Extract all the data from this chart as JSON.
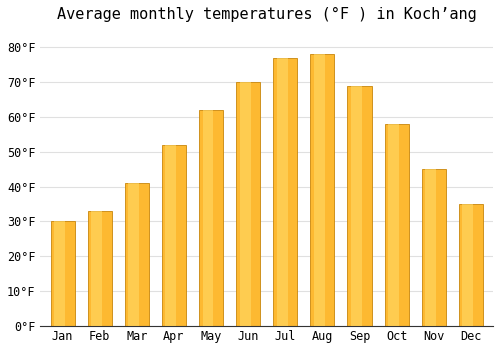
{
  "title": "Average monthly temperatures (°F ) in Koch’ang",
  "months": [
    "Jan",
    "Feb",
    "Mar",
    "Apr",
    "May",
    "Jun",
    "Jul",
    "Aug",
    "Sep",
    "Oct",
    "Nov",
    "Dec"
  ],
  "values": [
    30,
    33,
    41,
    52,
    62,
    70,
    77,
    78,
    69,
    58,
    45,
    35
  ],
  "bar_color": "#FDB931",
  "bar_edge_color": "#c8860a",
  "background_color": "#ffffff",
  "plot_bg_color": "#ffffff",
  "grid_color": "#e0e0e0",
  "ylim": [
    0,
    85
  ],
  "yticks": [
    0,
    10,
    20,
    30,
    40,
    50,
    60,
    70,
    80
  ],
  "title_fontsize": 11,
  "tick_fontsize": 8.5,
  "font_family": "monospace",
  "bar_width": 0.65
}
